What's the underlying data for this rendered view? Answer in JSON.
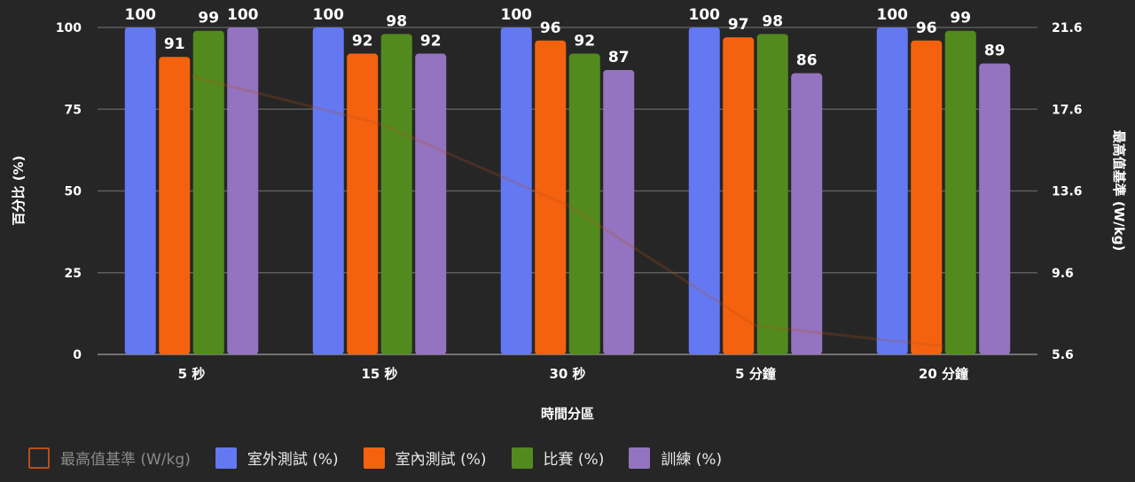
{
  "chart_data": {
    "type": "bar",
    "xlabel": "時間分區",
    "ylabel": "百分比 (%)",
    "y2label": "最高值基準 (W/kg)",
    "categories": [
      "5 秒",
      "15 秒",
      "30 秒",
      "5 分鐘",
      "20 分鐘"
    ],
    "ylim": [
      0,
      100
    ],
    "yticks": [
      "0",
      "25",
      "50",
      "75",
      "100"
    ],
    "y2lim": [
      5.6,
      21.6
    ],
    "y2ticks": [
      "5.6",
      "9.6",
      "13.6",
      "17.6",
      "21.6"
    ],
    "series": [
      {
        "name": "室外測試 (%)",
        "color": "#6478f2",
        "values": [
          100,
          100,
          100,
          100,
          100
        ]
      },
      {
        "name": "室內測試 (%)",
        "color": "#f5620f",
        "values": [
          91,
          92,
          96,
          97,
          96
        ]
      },
      {
        "name": "比賽 (%)",
        "color": "#528a1e",
        "values": [
          99,
          98,
          92,
          98,
          99
        ]
      },
      {
        "name": "訓練 (%)",
        "color": "#9474c0",
        "values": [
          100,
          92,
          87,
          86,
          89
        ]
      }
    ],
    "line_series": {
      "name": "最高值基準 (W/kg)",
      "color": "#b5501a",
      "hidden": true,
      "values": [
        19.2,
        16.9,
        12.9,
        7.0,
        6.0
      ]
    },
    "grid": true,
    "legend_position": "bottom-left"
  }
}
